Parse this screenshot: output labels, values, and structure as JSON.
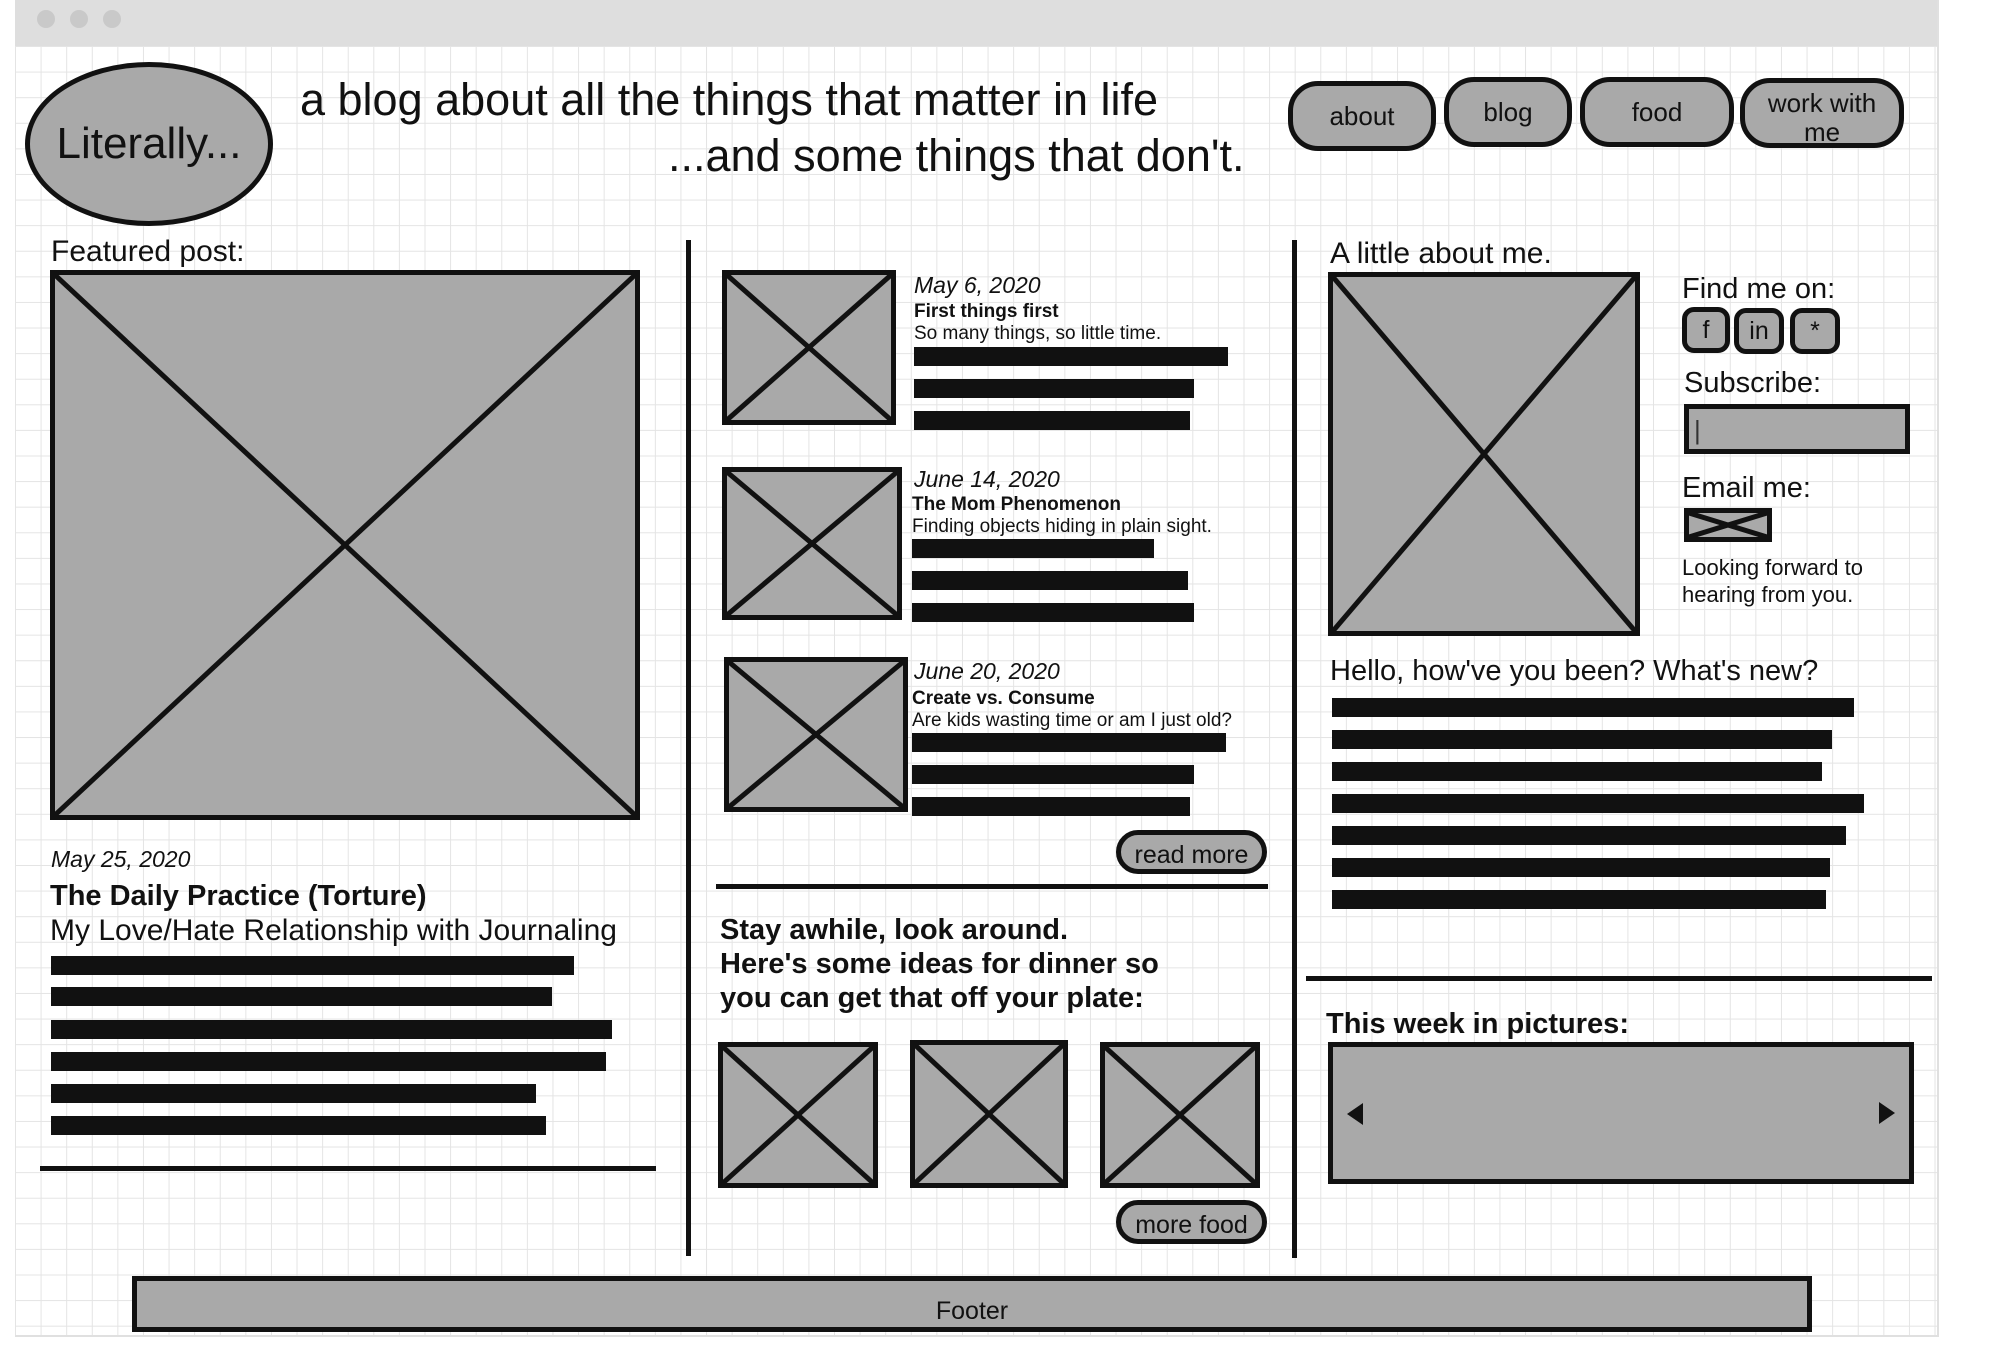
{
  "header": {
    "logo": "Literally...",
    "tagline_line1": "a blog about all the things that matter in life",
    "tagline_line2": "...and some things that don't."
  },
  "nav": {
    "items": [
      {
        "label": "about"
      },
      {
        "label": "blog"
      },
      {
        "label": "food"
      },
      {
        "label": "work with me"
      }
    ]
  },
  "featured": {
    "heading": "Featured post:",
    "date": "May 25, 2020",
    "title": "The Daily Practice (Torture)",
    "subtitle": "My Love/Hate Relationship with Journaling"
  },
  "posts": [
    {
      "date": "May 6, 2020",
      "title": "First things first",
      "summary": "So many things, so little time."
    },
    {
      "date": "June 14, 2020",
      "title": "The Mom Phenomenon",
      "summary": "Finding objects hiding in plain sight."
    },
    {
      "date": "June 20, 2020",
      "title": "Create vs. Consume",
      "summary": "Are kids wasting time or am I just old?"
    }
  ],
  "read_more_label": "read more",
  "food": {
    "heading_line1": "Stay awhile, look around.",
    "heading_line2": "Here's some ideas for dinner so",
    "heading_line3": "you can get that off your plate:",
    "more_label": "more food"
  },
  "about": {
    "heading": "A little about me.",
    "find_me_label": "Find me on:",
    "social": [
      "f",
      "in",
      "*"
    ],
    "subscribe_label": "Subscribe:",
    "subscribe_value": "|",
    "email_label": "Email me:",
    "email_note_line1": "Looking forward to",
    "email_note_line2": "hearing from you.",
    "greeting": "Hello, how've you been? What's new?"
  },
  "pictures": {
    "heading": "This week in pictures:"
  },
  "footer": {
    "label": "Footer"
  },
  "colors": {
    "placeholder_fill": "#a9a9a9",
    "ink": "#111111",
    "grid": "#e4e4e4",
    "titlebar": "#dedede"
  },
  "icons": {
    "slider_prev": "arrow-left-icon",
    "slider_next": "arrow-right-icon"
  }
}
